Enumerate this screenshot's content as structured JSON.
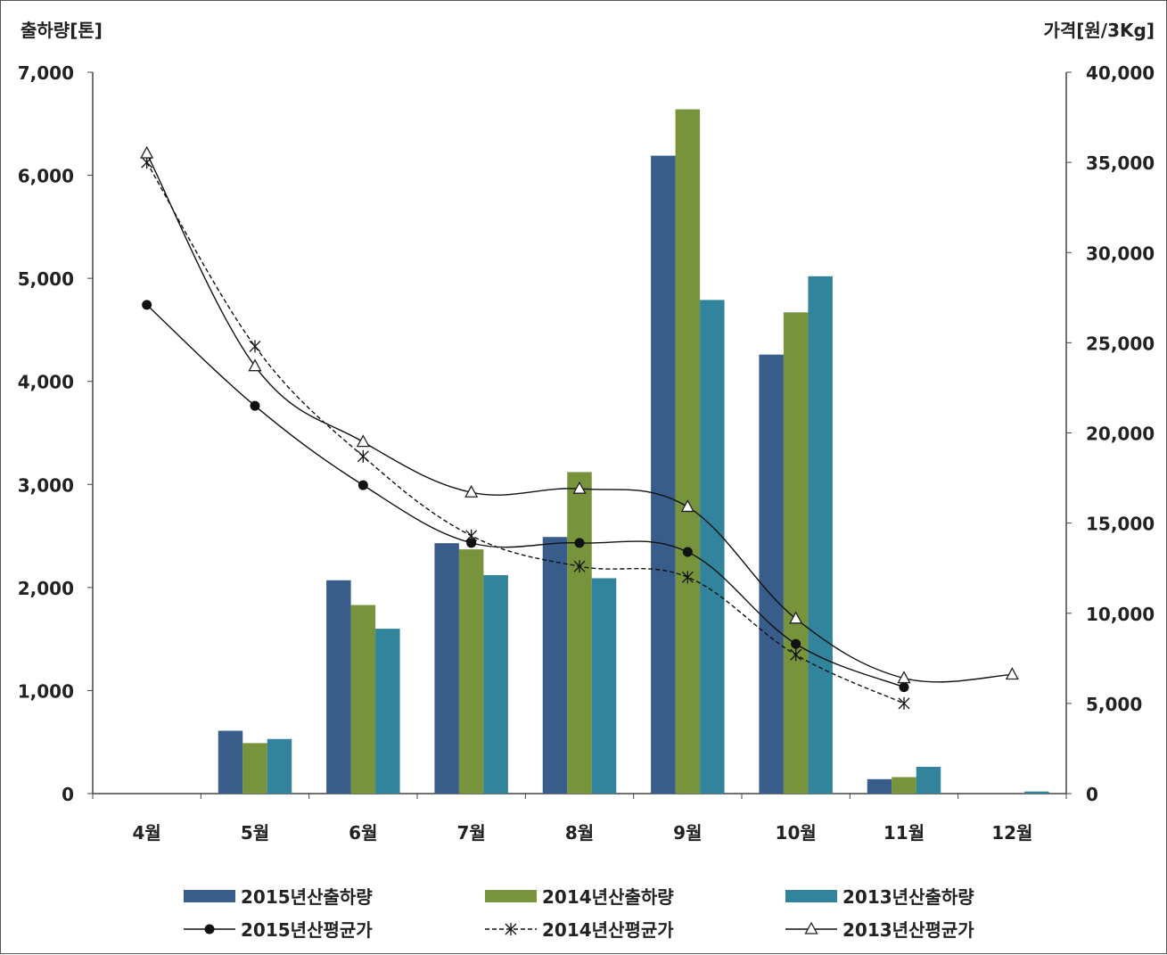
{
  "chart_data": {
    "type": "bar",
    "title": "",
    "ylabel_left": "출하량[톤]",
    "ylabel_right": "가격[원/3Kg]",
    "categories": [
      "4월",
      "5월",
      "6월",
      "7월",
      "8월",
      "9월",
      "10월",
      "11월",
      "12월"
    ],
    "ylim_left": [
      0,
      7000
    ],
    "ylim_right": [
      0,
      40000
    ],
    "left_ticks": [
      "0",
      "1,000",
      "2,000",
      "3,000",
      "4,000",
      "5,000",
      "6,000",
      "7,000"
    ],
    "right_ticks": [
      "0",
      "5,000",
      "10,000",
      "15,000",
      "20,000",
      "25,000",
      "30,000",
      "35,000",
      "40,000"
    ],
    "grid": false,
    "legend_position": "bottom",
    "bar_series": [
      {
        "name": "2015년산출하량",
        "color": "#385d8a",
        "values": [
          0,
          610,
          2070,
          2430,
          2490,
          6190,
          4260,
          140,
          0
        ]
      },
      {
        "name": "2014년산출하량",
        "color": "#77933c",
        "values": [
          0,
          490,
          1830,
          2370,
          3120,
          6640,
          4670,
          160,
          0
        ]
      },
      {
        "name": "2013년산출하량",
        "color": "#31849b",
        "values": [
          0,
          530,
          1600,
          2120,
          2090,
          4790,
          5020,
          260,
          20
        ]
      }
    ],
    "line_series": [
      {
        "name": "2015년산평균가",
        "marker": "circle",
        "dash": "solid",
        "values": [
          27100,
          21500,
          17100,
          13900,
          13900,
          13400,
          8300,
          5900,
          null
        ]
      },
      {
        "name": "2014년산평균가",
        "marker": "star",
        "dash": "dashed",
        "values": [
          35000,
          24800,
          18700,
          14300,
          12600,
          12000,
          7700,
          5000,
          null
        ]
      },
      {
        "name": "2013년산평균가",
        "marker": "triangle",
        "dash": "solid",
        "values": [
          35500,
          23700,
          19500,
          16700,
          16900,
          15900,
          9700,
          6400,
          6600
        ]
      }
    ]
  }
}
